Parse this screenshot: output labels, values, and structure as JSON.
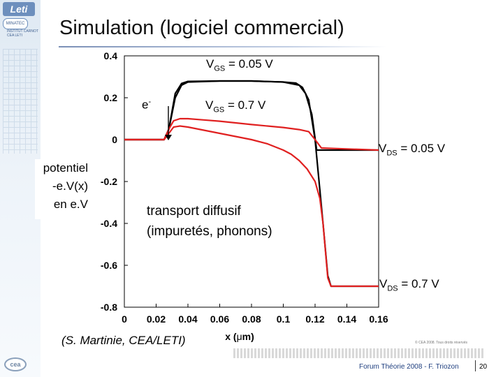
{
  "title": "Simulation (logiciel commercial)",
  "logos": {
    "leti": "Leti",
    "badge": "MINATEC",
    "carnot": "INSTITUT CARNOT CEA LETI",
    "cea": "cea"
  },
  "annotations": {
    "vgs_low": {
      "base": "V",
      "sub": "GS",
      "rest": " = 0.05 V"
    },
    "vgs_high": {
      "base": "V",
      "sub": "GS",
      "rest": " = 0.7 V"
    },
    "vds_low": {
      "base": "V",
      "sub": "DS",
      "rest": " = 0.05 V"
    },
    "vds_high": {
      "base": "V",
      "sub": "DS",
      "rest": " = 0.7 V"
    },
    "electron": {
      "base": "e",
      "sup": "-"
    },
    "side_label": [
      "potentiel",
      "-e.V(x)",
      "en e.V"
    ],
    "transport": [
      "transport diffusif",
      "(impuretés, phonons)"
    ],
    "credit": "(S. Martinie, CEA/LETI)"
  },
  "footer": {
    "copyright": "© CEA 2008. Tous droits réservés",
    "event": "Forum Théorie 2008 - F. Triozon",
    "page": "20"
  },
  "chart_data": {
    "type": "line",
    "xlabel_prefix": "x (",
    "xlabel_mu": "μ",
    "xlabel_suffix": "m)",
    "ylabel": "",
    "xlim": [
      0,
      0.16
    ],
    "ylim": [
      -0.8,
      0.4
    ],
    "x_ticks": [
      "0",
      "0.02",
      "0.04",
      "0.06",
      "0.08",
      "0.1",
      "0.12",
      "0.14",
      "0.16"
    ],
    "y_ticks": [
      "0.4",
      "0.2",
      "0",
      "-0.2",
      "-0.4",
      "-0.6",
      "-0.8"
    ],
    "colors": {
      "black_series": "#000000",
      "red_series": "#e02020"
    },
    "series": [
      {
        "color": "black_series",
        "x": [
          0,
          0.025,
          0.028,
          0.032,
          0.036,
          0.04,
          0.06,
          0.08,
          0.1,
          0.11,
          0.114,
          0.118,
          0.121,
          0.124,
          0.16
        ],
        "y": [
          0,
          0.0,
          0.05,
          0.2,
          0.26,
          0.275,
          0.28,
          0.28,
          0.275,
          0.26,
          0.22,
          0.12,
          -0.05,
          -0.05,
          -0.05
        ]
      },
      {
        "color": "black_series",
        "x": [
          0,
          0.025,
          0.028,
          0.032,
          0.036,
          0.04,
          0.06,
          0.08,
          0.1,
          0.108,
          0.112,
          0.116,
          0.12,
          0.125,
          0.128,
          0.13,
          0.133,
          0.138,
          0.16
        ],
        "y": [
          0,
          0.0,
          0.05,
          0.22,
          0.268,
          0.278,
          0.28,
          0.28,
          0.275,
          0.27,
          0.25,
          0.19,
          0.0,
          -0.4,
          -0.65,
          -0.7,
          -0.7,
          -0.7,
          -0.7
        ]
      },
      {
        "color": "red_series",
        "x": [
          0,
          0.025,
          0.028,
          0.031,
          0.035,
          0.04,
          0.05,
          0.06,
          0.07,
          0.08,
          0.09,
          0.1,
          0.11,
          0.116,
          0.12,
          0.124,
          0.16
        ],
        "y": [
          0,
          0.0,
          0.05,
          0.09,
          0.1,
          0.1,
          0.094,
          0.088,
          0.08,
          0.072,
          0.065,
          0.058,
          0.048,
          0.038,
          0.0,
          -0.04,
          -0.05
        ]
      },
      {
        "color": "red_series",
        "x": [
          0,
          0.025,
          0.028,
          0.031,
          0.035,
          0.04,
          0.05,
          0.06,
          0.07,
          0.08,
          0.09,
          0.1,
          0.105,
          0.11,
          0.115,
          0.12,
          0.123,
          0.125,
          0.128,
          0.13,
          0.135,
          0.16
        ],
        "y": [
          0,
          0.0,
          0.03,
          0.06,
          0.065,
          0.06,
          0.045,
          0.03,
          0.015,
          0.0,
          -0.02,
          -0.05,
          -0.07,
          -0.1,
          -0.14,
          -0.2,
          -0.28,
          -0.4,
          -0.66,
          -0.7,
          -0.7,
          -0.7
        ]
      }
    ]
  }
}
